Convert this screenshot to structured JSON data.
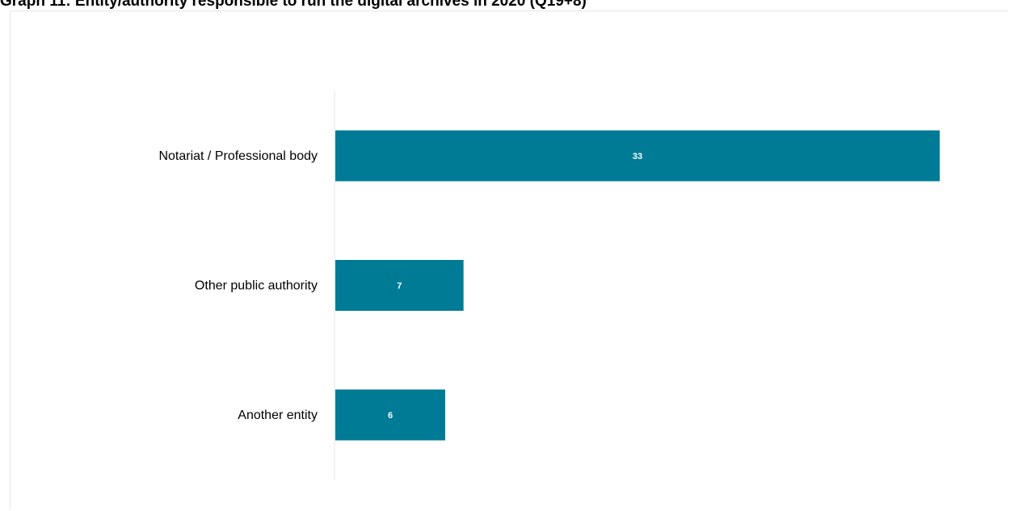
{
  "chart_data": {
    "type": "bar",
    "orientation": "horizontal",
    "title": "Graph 11: Entity/authority responsible to run the digital archives in 2020 (Q19+8)",
    "categories": [
      "Notariat / Professional body",
      "Other public authority",
      "Another entity"
    ],
    "values": [
      33,
      7,
      6
    ],
    "data_labels": [
      "33",
      "7",
      "6"
    ],
    "xlabel": "",
    "ylabel": "",
    "xlim": [
      0,
      33
    ],
    "grid": false,
    "legend": "none",
    "colors": {
      "bar": "#007B96",
      "bar_label": "#ffffff",
      "category_label": "#000000",
      "axis_line": "#e6e6e6"
    }
  }
}
